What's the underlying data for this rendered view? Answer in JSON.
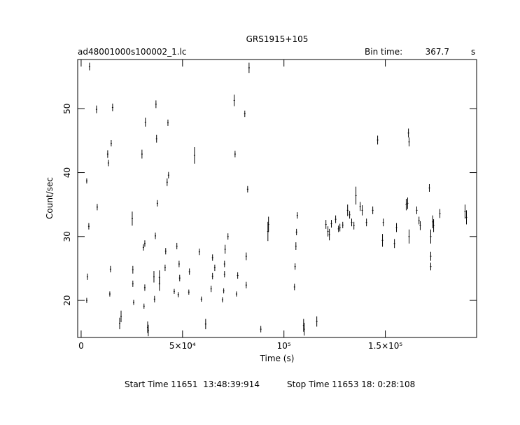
{
  "chart_data": {
    "type": "scatter",
    "title": "GRS1915+105",
    "subtitle": "ad48001000s100002_1.lc",
    "bin_time_label": "Bin time:",
    "bin_time_value": "367.7",
    "bin_time_unit": "s",
    "x_label": "Time (s)",
    "y_label": "Count/sec",
    "start_time": "Start Time 11651  13:48:39:914",
    "stop_time": "Stop Time 11653 18: 0:28:108",
    "xlim": [
      -1700,
      195000
    ],
    "ylim": [
      14.2,
      57.7
    ],
    "xticks": [
      0,
      {
        "value": 50000,
        "label": "5×10⁴"
      },
      {
        "value": 100000,
        "label": "10⁵"
      },
      {
        "value": 150000,
        "label": "1.5×10⁵"
      }
    ],
    "yticks": [
      20,
      30,
      40,
      50
    ],
    "color": "#000000",
    "x": [
      2760,
      3100,
      2760,
      3790,
      4140,
      7930,
      7590,
      13100,
      13450,
      14140,
      14480,
      14830,
      15520,
      19000,
      19700,
      25200,
      25500,
      25500,
      25900,
      30000,
      30700,
      31000,
      31400,
      31400,
      31700,
      32800,
      33100,
      35900,
      36200,
      36600,
      36900,
      37200,
      37600,
      38600,
      38600,
      41400,
      41700,
      42400,
      42800,
      43100,
      45900,
      47200,
      47900,
      48300,
      48600,
      53100,
      53400,
      55900,
      58300,
      59300,
      61400,
      64100,
      64800,
      64800,
      65900,
      69700,
      70300,
      70700,
      70700,
      71000,
      72400,
      75500,
      75900,
      76600,
      77200,
      80700,
      81400,
      81400,
      82100,
      82800,
      88600,
      92100,
      92400,
      105200,
      105500,
      105900,
      106200,
      106600,
      109700,
      110000,
      116200,
      120700,
      121700,
      122400,
      123400,
      125500,
      126900,
      127600,
      129000,
      131400,
      132400,
      133400,
      134500,
      135500,
      137600,
      138600,
      140700,
      143800,
      146200,
      148600,
      149000,
      154500,
      155500,
      160300,
      161000,
      161400,
      161700,
      161700,
      165500,
      166600,
      167200,
      171700,
      172400,
      172400,
      172400,
      173400,
      173800,
      176900,
      189300,
      190000
    ],
    "values": [
      38.7,
      23.7,
      20.0,
      31.6,
      56.6,
      34.6,
      49.9,
      42.9,
      41.5,
      21.0,
      24.9,
      44.6,
      50.2,
      16.4,
      17.5,
      32.8,
      24.8,
      22.6,
      19.7,
      42.9,
      28.3,
      19.1,
      28.9,
      22.0,
      47.9,
      15.8,
      15.3,
      23.7,
      20.2,
      30.1,
      50.7,
      45.3,
      35.2,
      22.6,
      23.6,
      25.1,
      27.7,
      38.5,
      47.8,
      39.6,
      21.4,
      28.5,
      20.9,
      25.7,
      23.5,
      21.3,
      24.5,
      42.7,
      27.6,
      20.2,
      16.3,
      21.8,
      26.7,
      23.8,
      25.1,
      20.1,
      21.5,
      25.7,
      24.1,
      28.0,
      30.0,
      51.3,
      42.9,
      21.0,
      23.9,
      49.2,
      26.9,
      22.4,
      37.4,
      56.4,
      15.5,
      30.8,
      31.9,
      22.1,
      25.3,
      28.5,
      30.7,
      33.3,
      16.1,
      15.5,
      16.7,
      31.9,
      30.8,
      30.3,
      32.0,
      32.7,
      31.2,
      31.4,
      31.8,
      34.1,
      33.4,
      32.2,
      31.7,
      36.4,
      34.7,
      34.1,
      32.2,
      34.1,
      45.1,
      29.4,
      32.2,
      28.9,
      31.4,
      35.0,
      35.2,
      46.2,
      44.8,
      30.0,
      34.1,
      32.5,
      31.7,
      37.6,
      30.0,
      26.9,
      25.3,
      32.3,
      31.7,
      33.6,
      33.9,
      33.0
    ],
    "errors": [
      0.4,
      0.5,
      0.4,
      0.5,
      0.6,
      0.5,
      0.6,
      0.6,
      0.5,
      0.4,
      0.5,
      0.5,
      0.6,
      0.9,
      0.9,
      1.1,
      0.6,
      0.5,
      0.4,
      0.7,
      0.5,
      0.4,
      0.5,
      0.5,
      0.7,
      0.9,
      0.9,
      0.9,
      0.5,
      0.5,
      0.6,
      0.6,
      0.5,
      1.1,
      1.1,
      0.5,
      0.5,
      0.6,
      0.5,
      0.5,
      0.4,
      0.5,
      0.4,
      0.5,
      0.5,
      0.4,
      0.5,
      1.3,
      0.5,
      0.4,
      0.8,
      0.5,
      0.5,
      0.5,
      0.5,
      0.4,
      0.4,
      0.5,
      0.5,
      0.7,
      0.5,
      0.9,
      0.5,
      0.4,
      0.5,
      0.5,
      0.6,
      0.5,
      0.5,
      0.8,
      0.5,
      1.5,
      1.2,
      0.5,
      0.5,
      0.6,
      0.5,
      0.5,
      1.0,
      1.0,
      0.8,
      0.7,
      0.8,
      0.9,
      0.6,
      0.6,
      0.5,
      0.6,
      0.5,
      0.9,
      0.6,
      0.6,
      0.6,
      1.4,
      0.7,
      0.8,
      0.6,
      0.6,
      0.7,
      1.0,
      0.6,
      0.7,
      0.7,
      0.9,
      0.9,
      0.7,
      0.7,
      1.1,
      0.6,
      0.6,
      0.7,
      0.6,
      1.1,
      0.7,
      0.6,
      1.0,
      1.0,
      0.7,
      1.1,
      1.1
    ]
  }
}
